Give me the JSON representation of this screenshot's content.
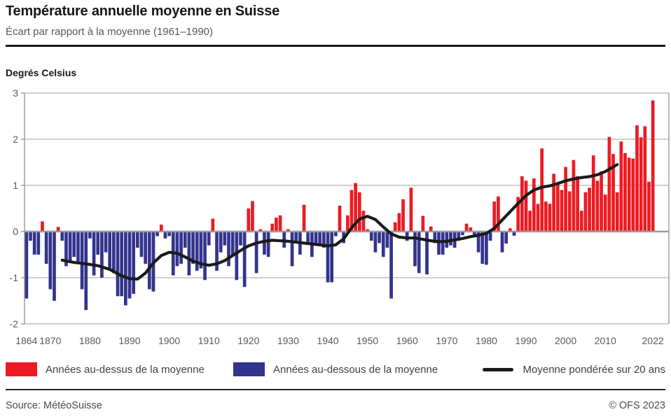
{
  "header": {
    "title": "Température annuelle moyenne en Suisse",
    "subtitle": "Écart par rapport à la moyenne (1961–1990)"
  },
  "y_axis_label": "Degrés Celsius",
  "chart_data": {
    "type": "bar",
    "title": "Température annuelle moyenne en Suisse",
    "subtitle": "Écart par rapport à la moyenne (1961–1990)",
    "ylabel": "Degrés Celsius",
    "unit": "degrés Celsius (écart)",
    "ylim": [
      -2,
      3
    ],
    "y_ticks": [
      3,
      2,
      1,
      0,
      -1,
      -2
    ],
    "x_tick_years": [
      1864,
      1870,
      1880,
      1890,
      1900,
      1910,
      1920,
      1930,
      1940,
      1950,
      1960,
      1970,
      1980,
      1990,
      2000,
      2010,
      2022
    ],
    "grid": true,
    "legend_position": "bottom",
    "start_year": 1864,
    "end_year": 2022,
    "bars": {
      "series_above": "Années au-dessus de la moyenne",
      "series_below": "Années au-dessous de la moyenne",
      "values": [
        -1.45,
        -0.2,
        -0.5,
        -0.5,
        0.22,
        -0.7,
        -1.25,
        -1.5,
        0.1,
        -0.2,
        -0.75,
        -0.65,
        -0.55,
        -0.7,
        -1.25,
        -1.7,
        -0.15,
        -0.95,
        -0.5,
        -1.0,
        -0.45,
        -0.8,
        -0.9,
        -1.4,
        -1.4,
        -1.6,
        -1.45,
        -1.35,
        -0.35,
        -0.55,
        -0.7,
        -1.25,
        -1.3,
        -0.1,
        0.15,
        -0.15,
        -0.1,
        -0.95,
        -0.75,
        -0.7,
        -0.35,
        -0.95,
        -0.7,
        -0.85,
        -0.8,
        -1.05,
        -0.3,
        0.28,
        -0.85,
        -0.45,
        -0.3,
        -0.75,
        -0.5,
        -1.05,
        -0.3,
        -1.2,
        0.5,
        0.66,
        -0.9,
        0.05,
        -0.5,
        -0.55,
        0.17,
        0.3,
        0.35,
        -0.35,
        0.05,
        -0.75,
        -0.2,
        -0.5,
        0.58,
        -0.25,
        -0.55,
        -0.27,
        -0.27,
        -0.35,
        -1.1,
        -1.1,
        -0.1,
        0.56,
        -0.25,
        0.35,
        0.9,
        1.05,
        0.85,
        0.45,
        0.05,
        -0.2,
        -0.45,
        -0.25,
        -0.55,
        -0.35,
        -1.45,
        0.2,
        0.4,
        0.7,
        -0.2,
        0.95,
        -0.75,
        -0.9,
        0.34,
        -0.93,
        0.11,
        -0.25,
        -0.5,
        -0.5,
        -0.35,
        -0.3,
        -0.35,
        -0.2,
        -0.08,
        0.17,
        0.09,
        -0.1,
        -0.45,
        -0.7,
        -0.72,
        -0.2,
        0.65,
        0.76,
        -0.45,
        -0.26,
        0.07,
        -0.09,
        0.75,
        1.2,
        1.1,
        0.45,
        1.15,
        0.6,
        1.8,
        0.65,
        0.6,
        1.25,
        1.05,
        0.9,
        1.4,
        0.87,
        1.55,
        1.2,
        0.45,
        0.85,
        0.95,
        1.65,
        1.1,
        1.3,
        0.8,
        2.05,
        1.68,
        0.85,
        1.95,
        1.7,
        1.6,
        1.58,
        2.3,
        2.04,
        2.28,
        1.08,
        2.84
      ]
    },
    "trend": {
      "name": "Moyenne pondérée sur 20 ans",
      "points": [
        [
          1873,
          -0.62
        ],
        [
          1876,
          -0.67
        ],
        [
          1879,
          -0.7
        ],
        [
          1882,
          -0.74
        ],
        [
          1885,
          -0.82
        ],
        [
          1888,
          -0.96
        ],
        [
          1890,
          -1.02
        ],
        [
          1892,
          -1.03
        ],
        [
          1894,
          -0.9
        ],
        [
          1896,
          -0.68
        ],
        [
          1898,
          -0.52
        ],
        [
          1900,
          -0.45
        ],
        [
          1902,
          -0.47
        ],
        [
          1904,
          -0.55
        ],
        [
          1906,
          -0.64
        ],
        [
          1908,
          -0.7
        ],
        [
          1910,
          -0.73
        ],
        [
          1912,
          -0.7
        ],
        [
          1914,
          -0.63
        ],
        [
          1916,
          -0.52
        ],
        [
          1918,
          -0.41
        ],
        [
          1920,
          -0.31
        ],
        [
          1922,
          -0.25
        ],
        [
          1924,
          -0.21
        ],
        [
          1926,
          -0.19
        ],
        [
          1928,
          -0.2
        ],
        [
          1930,
          -0.21
        ],
        [
          1932,
          -0.23
        ],
        [
          1934,
          -0.25
        ],
        [
          1936,
          -0.27
        ],
        [
          1938,
          -0.29
        ],
        [
          1940,
          -0.31
        ],
        [
          1942,
          -0.29
        ],
        [
          1944,
          -0.16
        ],
        [
          1946,
          0.08
        ],
        [
          1948,
          0.27
        ],
        [
          1950,
          0.33
        ],
        [
          1952,
          0.26
        ],
        [
          1954,
          0.1
        ],
        [
          1956,
          -0.05
        ],
        [
          1958,
          -0.12
        ],
        [
          1960,
          -0.14
        ],
        [
          1962,
          -0.14
        ],
        [
          1964,
          -0.17
        ],
        [
          1966,
          -0.2
        ],
        [
          1968,
          -0.22
        ],
        [
          1970,
          -0.21
        ],
        [
          1972,
          -0.18
        ],
        [
          1974,
          -0.15
        ],
        [
          1976,
          -0.11
        ],
        [
          1978,
          -0.08
        ],
        [
          1980,
          -0.04
        ],
        [
          1982,
          0.07
        ],
        [
          1984,
          0.25
        ],
        [
          1986,
          0.43
        ],
        [
          1988,
          0.61
        ],
        [
          1990,
          0.78
        ],
        [
          1992,
          0.9
        ],
        [
          1994,
          0.96
        ],
        [
          1996,
          0.99
        ],
        [
          1998,
          1.04
        ],
        [
          2000,
          1.1
        ],
        [
          2002,
          1.14
        ],
        [
          2004,
          1.17
        ],
        [
          2006,
          1.19
        ],
        [
          2008,
          1.23
        ],
        [
          2010,
          1.3
        ],
        [
          2012,
          1.4
        ],
        [
          2013,
          1.45
        ]
      ]
    },
    "colors": {
      "above": "#EC1B23",
      "below": "#32348D",
      "trend": "#1A1A1A",
      "grid": "#B3B3B3",
      "zero_line": "#9A9A9A",
      "axis": "#9A9A9A",
      "tick_text": "#595959"
    }
  },
  "legend": {
    "items": [
      {
        "label": "Années au-dessus de la moyenne",
        "type": "swatch",
        "color": "#EC1B23"
      },
      {
        "label": "Années au-dessous de la moyenne",
        "type": "swatch",
        "color": "#32348D"
      },
      {
        "label": "Moyenne pondérée sur 20 ans",
        "type": "line",
        "color": "#1A1A1A"
      }
    ]
  },
  "footer": {
    "source": "Source: MétéoSuisse",
    "copyright": "© OFS 2023"
  }
}
